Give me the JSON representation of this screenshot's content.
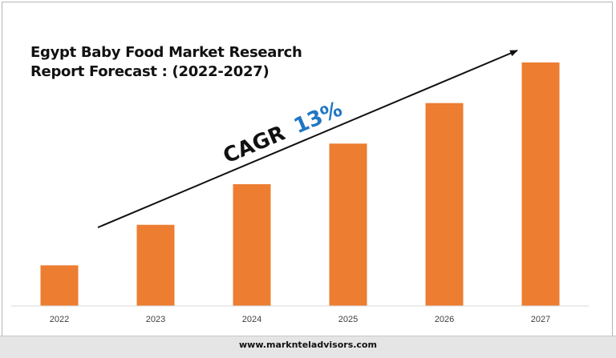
{
  "chart_data": {
    "type": "bar",
    "title": "Egypt Baby Food Market Research Report Forecast : (2022-2027)",
    "title_lines": [
      "Egypt Baby Food Market Research",
      "Report Forecast : (2022-2027)"
    ],
    "categories": [
      "2022",
      "2023",
      "2024",
      "2025",
      "2026",
      "2027"
    ],
    "values": [
      1.0,
      2.0,
      3.0,
      4.0,
      5.0,
      6.0
    ],
    "ylim": [
      0,
      6.0
    ],
    "grid": false,
    "legend": "none",
    "colors": {
      "bar": "#ed7d31",
      "axis": "#d9d9d9",
      "cagr_text": "#111111",
      "cagr_value": "#1f77c4"
    },
    "annotation": {
      "label": "CAGR",
      "value": "13%"
    }
  },
  "footer": {
    "website": "www.marknteladvisors.com"
  }
}
